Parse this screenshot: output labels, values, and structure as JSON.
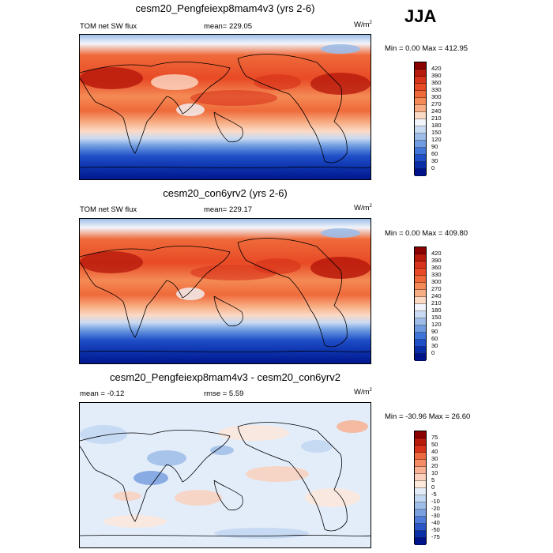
{
  "season": "JJA",
  "panels": [
    {
      "title": "cesm20_Pengfeiexp8mam4v3 (yrs 2-6)",
      "left_label": "TOM net SW flux",
      "mid_label": "mean= 229.05",
      "units": "W/m",
      "units_sup": "2",
      "minmax": "Min =   0.00 Max = 412.95",
      "colorbar": {
        "labels": [
          "420",
          "390",
          "360",
          "330",
          "300",
          "270",
          "240",
          "210",
          "180",
          "150",
          "120",
          "90",
          "60",
          "30",
          "0"
        ],
        "colors": [
          "#8b0000",
          "#b81a0c",
          "#d8341b",
          "#e84a26",
          "#ef6a3a",
          "#f48a55",
          "#f7ae84",
          "#fbd9c5",
          "#f2f5fb",
          "#c8daf2",
          "#9dbde8",
          "#6f9ce0",
          "#3f74d8",
          "#1f4fc8",
          "#0a2ea8",
          "#00138a"
        ]
      }
    },
    {
      "title": "cesm20_con6yrv2 (yrs 2-6)",
      "left_label": "TOM net SW flux",
      "mid_label": "mean= 229.17",
      "units": "W/m",
      "units_sup": "2",
      "minmax": "Min =   0.00 Max = 409.80",
      "colorbar": {
        "labels": [
          "420",
          "390",
          "360",
          "330",
          "300",
          "270",
          "240",
          "210",
          "180",
          "150",
          "120",
          "90",
          "60",
          "30",
          "0"
        ],
        "colors": [
          "#8b0000",
          "#b81a0c",
          "#d8341b",
          "#e84a26",
          "#ef6a3a",
          "#f48a55",
          "#f7ae84",
          "#fbd9c5",
          "#f2f5fb",
          "#c8daf2",
          "#9dbde8",
          "#6f9ce0",
          "#3f74d8",
          "#1f4fc8",
          "#0a2ea8",
          "#00138a"
        ]
      }
    },
    {
      "title": "cesm20_Pengfeiexp8mam4v3 - cesm20_con6yrv2",
      "left_label": "mean =  -0.12",
      "mid_label": "rmse =   5.59",
      "units": "W/m",
      "units_sup": "2",
      "minmax": "Min = -30.96 Max =  26.60",
      "colorbar": {
        "labels": [
          "75",
          "50",
          "40",
          "30",
          "20",
          "10",
          "5",
          "0",
          "-5",
          "-10",
          "-20",
          "-30",
          "-40",
          "-50",
          "-75"
        ],
        "colors": [
          "#8b0000",
          "#b81a0c",
          "#d8341b",
          "#ee6a40",
          "#f48d66",
          "#f8b293",
          "#fbd1bd",
          "#fde8dc",
          "#e3edfa",
          "#c3d7f2",
          "#9ebde8",
          "#7aa0e0",
          "#4f7cd8",
          "#2a56c8",
          "#0c30a8",
          "#00138a"
        ]
      }
    }
  ]
}
